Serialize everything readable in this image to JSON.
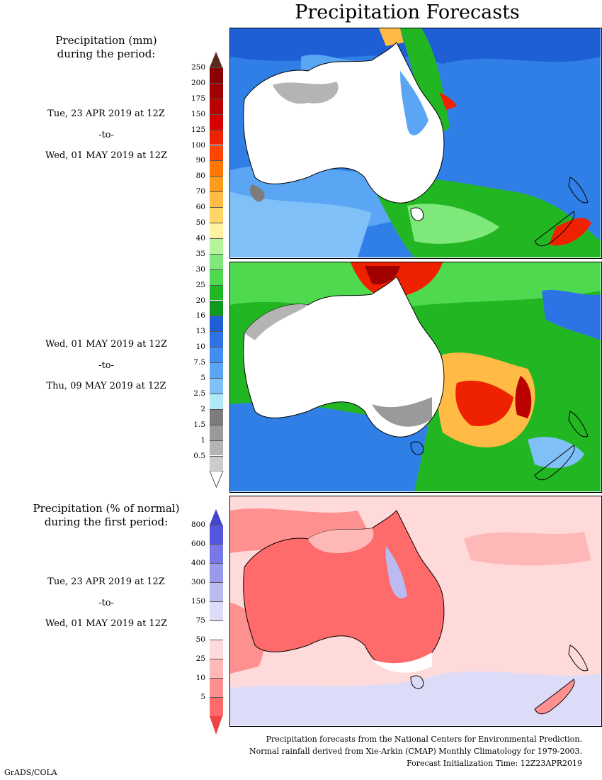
{
  "title": "Precipitation Forecasts",
  "legend1": {
    "heading_line1": "Precipitation (mm)",
    "heading_line2": "during the period:",
    "ticks": [
      "250",
      "200",
      "175",
      "150",
      "125",
      "100",
      "90",
      "80",
      "70",
      "60",
      "50",
      "40",
      "35",
      "30",
      "25",
      "20",
      "16",
      "13",
      "10",
      "7.5",
      "5",
      "2.5",
      "2",
      "1.5",
      "1",
      "0.5"
    ],
    "colors": [
      "#8b0000",
      "#a00000",
      "#bb0000",
      "#d50000",
      "#ee2200",
      "#ff4400",
      "#ff7700",
      "#ff9a1a",
      "#ffbb44",
      "#ffd566",
      "#fff2a0",
      "#b7f59c",
      "#7ee87a",
      "#4fd94f",
      "#23b623",
      "#0f9a1f",
      "#1f5fd6",
      "#2d73e6",
      "#3f8ef0",
      "#5aa6f5",
      "#80c0f8",
      "#b0e8f8",
      "#7c7c7c",
      "#9a9a9a",
      "#b4b4b4",
      "#cccccc"
    ],
    "top_arrow_color": "#5a2a1a"
  },
  "period1": {
    "start": "Tue, 23 APR 2019 at 12Z",
    "to": "-to-",
    "end": "Wed, 01 MAY 2019 at 12Z"
  },
  "period2": {
    "start": "Wed, 01 MAY 2019 at 12Z",
    "to": "-to-",
    "end": "Thu, 09 MAY 2019 at 12Z"
  },
  "legend2": {
    "heading_line1": "Precipitation (% of normal)",
    "heading_line2": "during the first period:",
    "ticks": [
      "800",
      "600",
      "400",
      "300",
      "150",
      "75",
      "50",
      "25",
      "10",
      "5"
    ],
    "colors": [
      "#5555dd",
      "#7777e6",
      "#9999ee",
      "#bbbbf2",
      "#dcdcf8",
      "#ffffff",
      "#ffdada",
      "#ffb8b8",
      "#ff9090",
      "#ff6a6a"
    ],
    "top_arrow_color": "#4444cc",
    "bottom_arrow_color": "#ee4444"
  },
  "period3": {
    "start": "Tue, 23 APR 2019 at 12Z",
    "to": "-to-",
    "end": "Wed, 01 MAY 2019 at 12Z"
  },
  "footer": {
    "line1": "Precipitation forecasts from the National Centers for Environmental Prediction.",
    "line2": "Normal rainfall derived from Xie-Arkin (CMAP) Monthly Climatology for 1979-2003.",
    "line3": "Forecast Initialization Time: 12Z23APR2019"
  },
  "credit": "GrADS/COLA"
}
